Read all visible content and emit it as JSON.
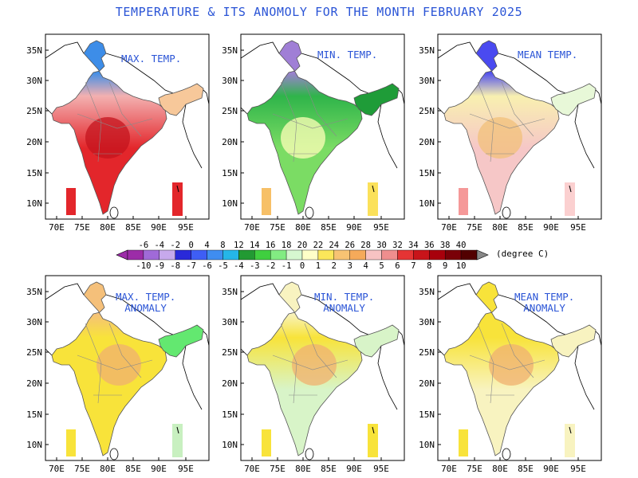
{
  "title": "TEMPERATURE & ITS ANOMOLY FOR THE MONTH FEBRUARY 2025",
  "axes": {
    "y_ticks": [
      "35N",
      "30N",
      "25N",
      "20N",
      "15N",
      "10N"
    ],
    "x_ticks": [
      "70E",
      "75E",
      "80E",
      "85E",
      "90E",
      "95E"
    ]
  },
  "panels": [
    {
      "id": "max",
      "label": "MAX. TEMP.",
      "kind": "temperature",
      "north": "#3d8de8",
      "mid": "#f3b0b0",
      "south": "#e3262b",
      "east": "#f7c89a",
      "core": "#c4141e",
      "inset_left": "#e3262b",
      "inset_right": "#e3262b"
    },
    {
      "id": "min",
      "label": "MIN. TEMP.",
      "kind": "temperature",
      "north": "#a07fd6",
      "mid": "#2fb44a",
      "south": "#7bdc64",
      "east": "#1f9c38",
      "core": "#ffffb8",
      "inset_left": "#f7c067",
      "inset_right": "#fbe15a"
    },
    {
      "id": "mean",
      "label": "MEAN TEMP.",
      "kind": "temperature",
      "north": "#4a4af0",
      "mid": "#f8f0b0",
      "south": "#f6c7c7",
      "east": "#e8f8d8",
      "core": "#f2c07a",
      "inset_left": "#f59898",
      "inset_right": "#fbd0d0"
    },
    {
      "id": "max-anom",
      "label": "MAX. TEMP.\nANOMALY",
      "kind": "anomaly",
      "north": "#f5c07a",
      "mid": "#f8e33a",
      "south": "#f8e33a",
      "east": "#63e870",
      "core": "#f0b070",
      "inset_left": "#f8e33a",
      "inset_right": "#c8f0c0"
    },
    {
      "id": "min-anom",
      "label": "MIN. TEMP.\nANOMALY",
      "kind": "anomaly",
      "north": "#f8f3c0",
      "mid": "#f8e33a",
      "south": "#d8f4c8",
      "east": "#d8f4c8",
      "core": "#f0b070",
      "inset_left": "#f8e33a",
      "inset_right": "#f8e33a"
    },
    {
      "id": "mean-anom",
      "label": "MEAN TEMP.\nANOMALY",
      "kind": "anomaly",
      "north": "#f8e33a",
      "mid": "#f8e33a",
      "south": "#f8f3c0",
      "east": "#f8f3c0",
      "core": "#f0b070",
      "inset_left": "#f8e33a",
      "inset_right": "#f8f3c0"
    }
  ],
  "colorbar": {
    "top_labels": [
      "-6",
      "-4",
      "-2",
      "0",
      "4",
      "8",
      "12",
      "14",
      "16",
      "18",
      "20",
      "22",
      "24",
      "26",
      "28",
      "30",
      "32",
      "34",
      "36",
      "38",
      "40"
    ],
    "bottom_labels": [
      "-10",
      "-9",
      "-8",
      "-7",
      "-6",
      "-5",
      "-4",
      "-3",
      "-2",
      "-1",
      "0",
      "1",
      "2",
      "3",
      "4",
      "5",
      "6",
      "7",
      "8",
      "9",
      "10"
    ],
    "colors": [
      "#9c2ca8",
      "#a06ad8",
      "#c7a9ec",
      "#2929d9",
      "#3e5ef5",
      "#3f8df0",
      "#25b6e8",
      "#229a33",
      "#3fcf3f",
      "#82ec82",
      "#d6f7d0",
      "#ffffc8",
      "#fbe75a",
      "#f7c373",
      "#f5aa5a",
      "#f7c3c3",
      "#ef8e8e",
      "#e53434",
      "#c8141a",
      "#a8000c",
      "#7a0008",
      "#520000"
    ],
    "unit": "(degree C)"
  }
}
